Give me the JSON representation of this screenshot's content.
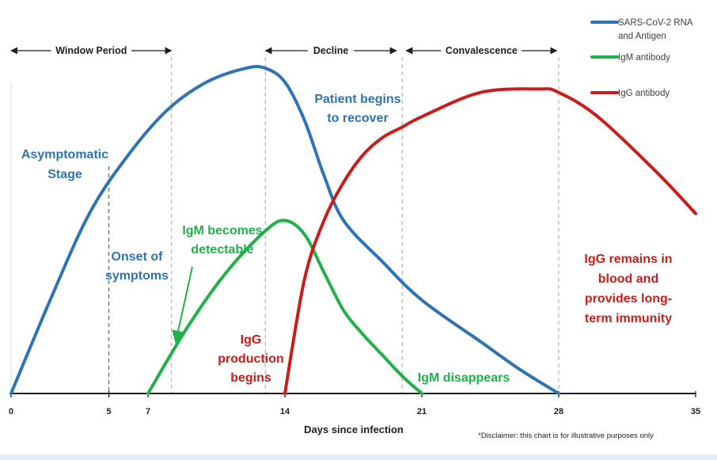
{
  "chart_data": {
    "type": "line",
    "xlabel": "Days since infection",
    "ylabel": "",
    "xlim": [
      0,
      35
    ],
    "ylim": [
      0,
      100
    ],
    "x_ticks": [
      0,
      5,
      7,
      14,
      21,
      28,
      35
    ],
    "tick_labels": [
      "0",
      "5",
      "7",
      "14",
      "21",
      "28",
      "35"
    ],
    "grid": false,
    "legend_position": "top-right",
    "series": [
      {
        "name": "SARS-CoV-2 RNA and Antigen",
        "legend_lines": [
          "SARS-CoV-2 RNA",
          "and Antigen"
        ],
        "color": "#2e74b5",
        "x": [
          0,
          2,
          4,
          6,
          8,
          10,
          12,
          13,
          14,
          15,
          16,
          17,
          19,
          21,
          24,
          26,
          28
        ],
        "y": [
          0,
          27,
          52,
          69,
          82,
          90,
          94,
          94,
          90,
          79,
          63,
          50,
          38,
          27,
          15,
          7,
          0
        ]
      },
      {
        "name": "IgM antibody",
        "legend_lines": [
          "IgM antibody"
        ],
        "color": "#21b14b",
        "x": [
          7,
          9,
          11,
          13,
          14,
          15,
          16,
          17,
          18,
          19,
          20,
          21
        ],
        "y": [
          0,
          19,
          35,
          47,
          50,
          46,
          35,
          24,
          17,
          11,
          5,
          0
        ]
      },
      {
        "name": "IgG antibody",
        "legend_lines": [
          "IgG antibody"
        ],
        "color": "#cc1b1b",
        "x": [
          14,
          15,
          16,
          17,
          18,
          19,
          20,
          21,
          24,
          27,
          28,
          30,
          33,
          35
        ],
        "y": [
          0,
          33,
          50,
          61,
          69,
          74,
          77,
          80,
          87,
          88,
          87,
          80,
          64,
          52
        ]
      }
    ],
    "phases": [
      {
        "label": "Window Period",
        "from": 0,
        "to": 8.2
      },
      {
        "label": "Decline",
        "from": 13,
        "to": 19.7
      },
      {
        "label": "Convalescence",
        "from": 20.2,
        "to": 27.9
      }
    ],
    "vlines": [
      5,
      8.2,
      13,
      20,
      28
    ],
    "annotations": [
      {
        "lines": [
          "Asymptomatic",
          "Stage"
        ],
        "color": "#2e74b5"
      },
      {
        "lines": [
          "Onset of",
          "symptoms"
        ],
        "color": "#2e74b5"
      },
      {
        "lines": [
          "Patient begins",
          "to recover"
        ],
        "color": "#2e74b5"
      },
      {
        "lines": [
          "IgM becomes",
          "detectable"
        ],
        "color": "#21b14b"
      },
      {
        "lines": [
          "IgG",
          "production",
          "begins"
        ],
        "color": "#cc1b1b"
      },
      {
        "lines": [
          "IgM disappears"
        ],
        "color": "#21b14b"
      },
      {
        "lines": [
          "IgG remains in",
          "blood and",
          "provides long-",
          "term immunity"
        ],
        "color": "#cc1b1b"
      }
    ],
    "disclaimer": "*Disclaimer: this chart is for illustrative purposes only"
  }
}
